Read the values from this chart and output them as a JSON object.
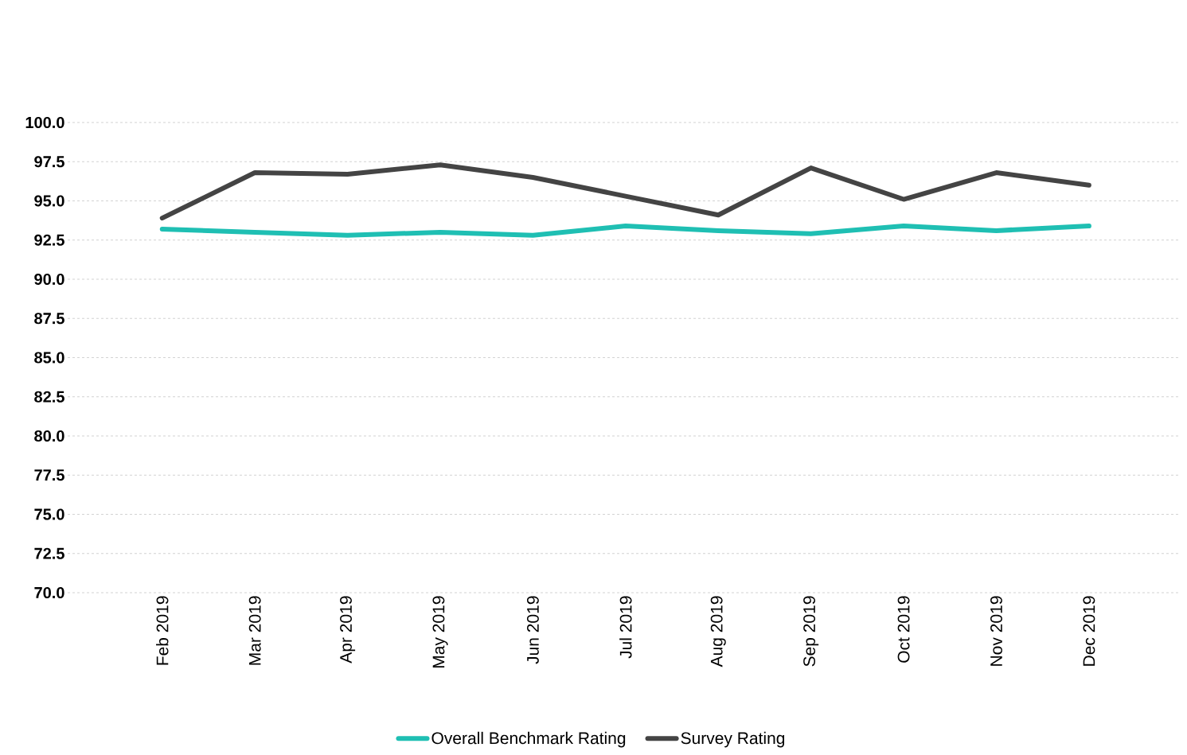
{
  "chart_data": {
    "type": "line",
    "categories": [
      "Feb 2019",
      "Mar 2019",
      "Apr 2019",
      "May 2019",
      "Jun 2019",
      "Jul 2019",
      "Aug 2019",
      "Sep 2019",
      "Oct 2019",
      "Nov 2019",
      "Dec 2019"
    ],
    "series": [
      {
        "name": "Overall Benchmark Rating",
        "color": "#1fbfb3",
        "values": [
          93.2,
          93.0,
          92.8,
          93.0,
          92.8,
          93.4,
          93.1,
          92.9,
          93.4,
          93.1,
          93.4
        ]
      },
      {
        "name": "Survey Rating",
        "color": "#444444",
        "values": [
          93.9,
          96.8,
          96.7,
          97.3,
          96.5,
          95.3,
          94.1,
          97.1,
          95.1,
          96.8,
          96.0
        ]
      }
    ],
    "ylim": [
      70,
      100
    ],
    "yticks": [
      {
        "value": 70,
        "label": "70.0"
      },
      {
        "value": 72.5,
        "label": "72.5"
      },
      {
        "value": 75,
        "label": "75.0"
      },
      {
        "value": 77.5,
        "label": "77.5"
      },
      {
        "value": 80,
        "label": "80.0"
      },
      {
        "value": 82.5,
        "label": "82.5"
      },
      {
        "value": 85,
        "label": "85.0"
      },
      {
        "value": 87.5,
        "label": "87.5"
      },
      {
        "value": 90,
        "label": "90.0"
      },
      {
        "value": 92.5,
        "label": "92.5"
      },
      {
        "value": 95,
        "label": "95.0"
      },
      {
        "value": 97.5,
        "label": "97.5"
      },
      {
        "value": 100,
        "label": "100.0"
      }
    ],
    "grid": "y",
    "legend": "bottom",
    "line_style": "solid",
    "marker": "none"
  }
}
